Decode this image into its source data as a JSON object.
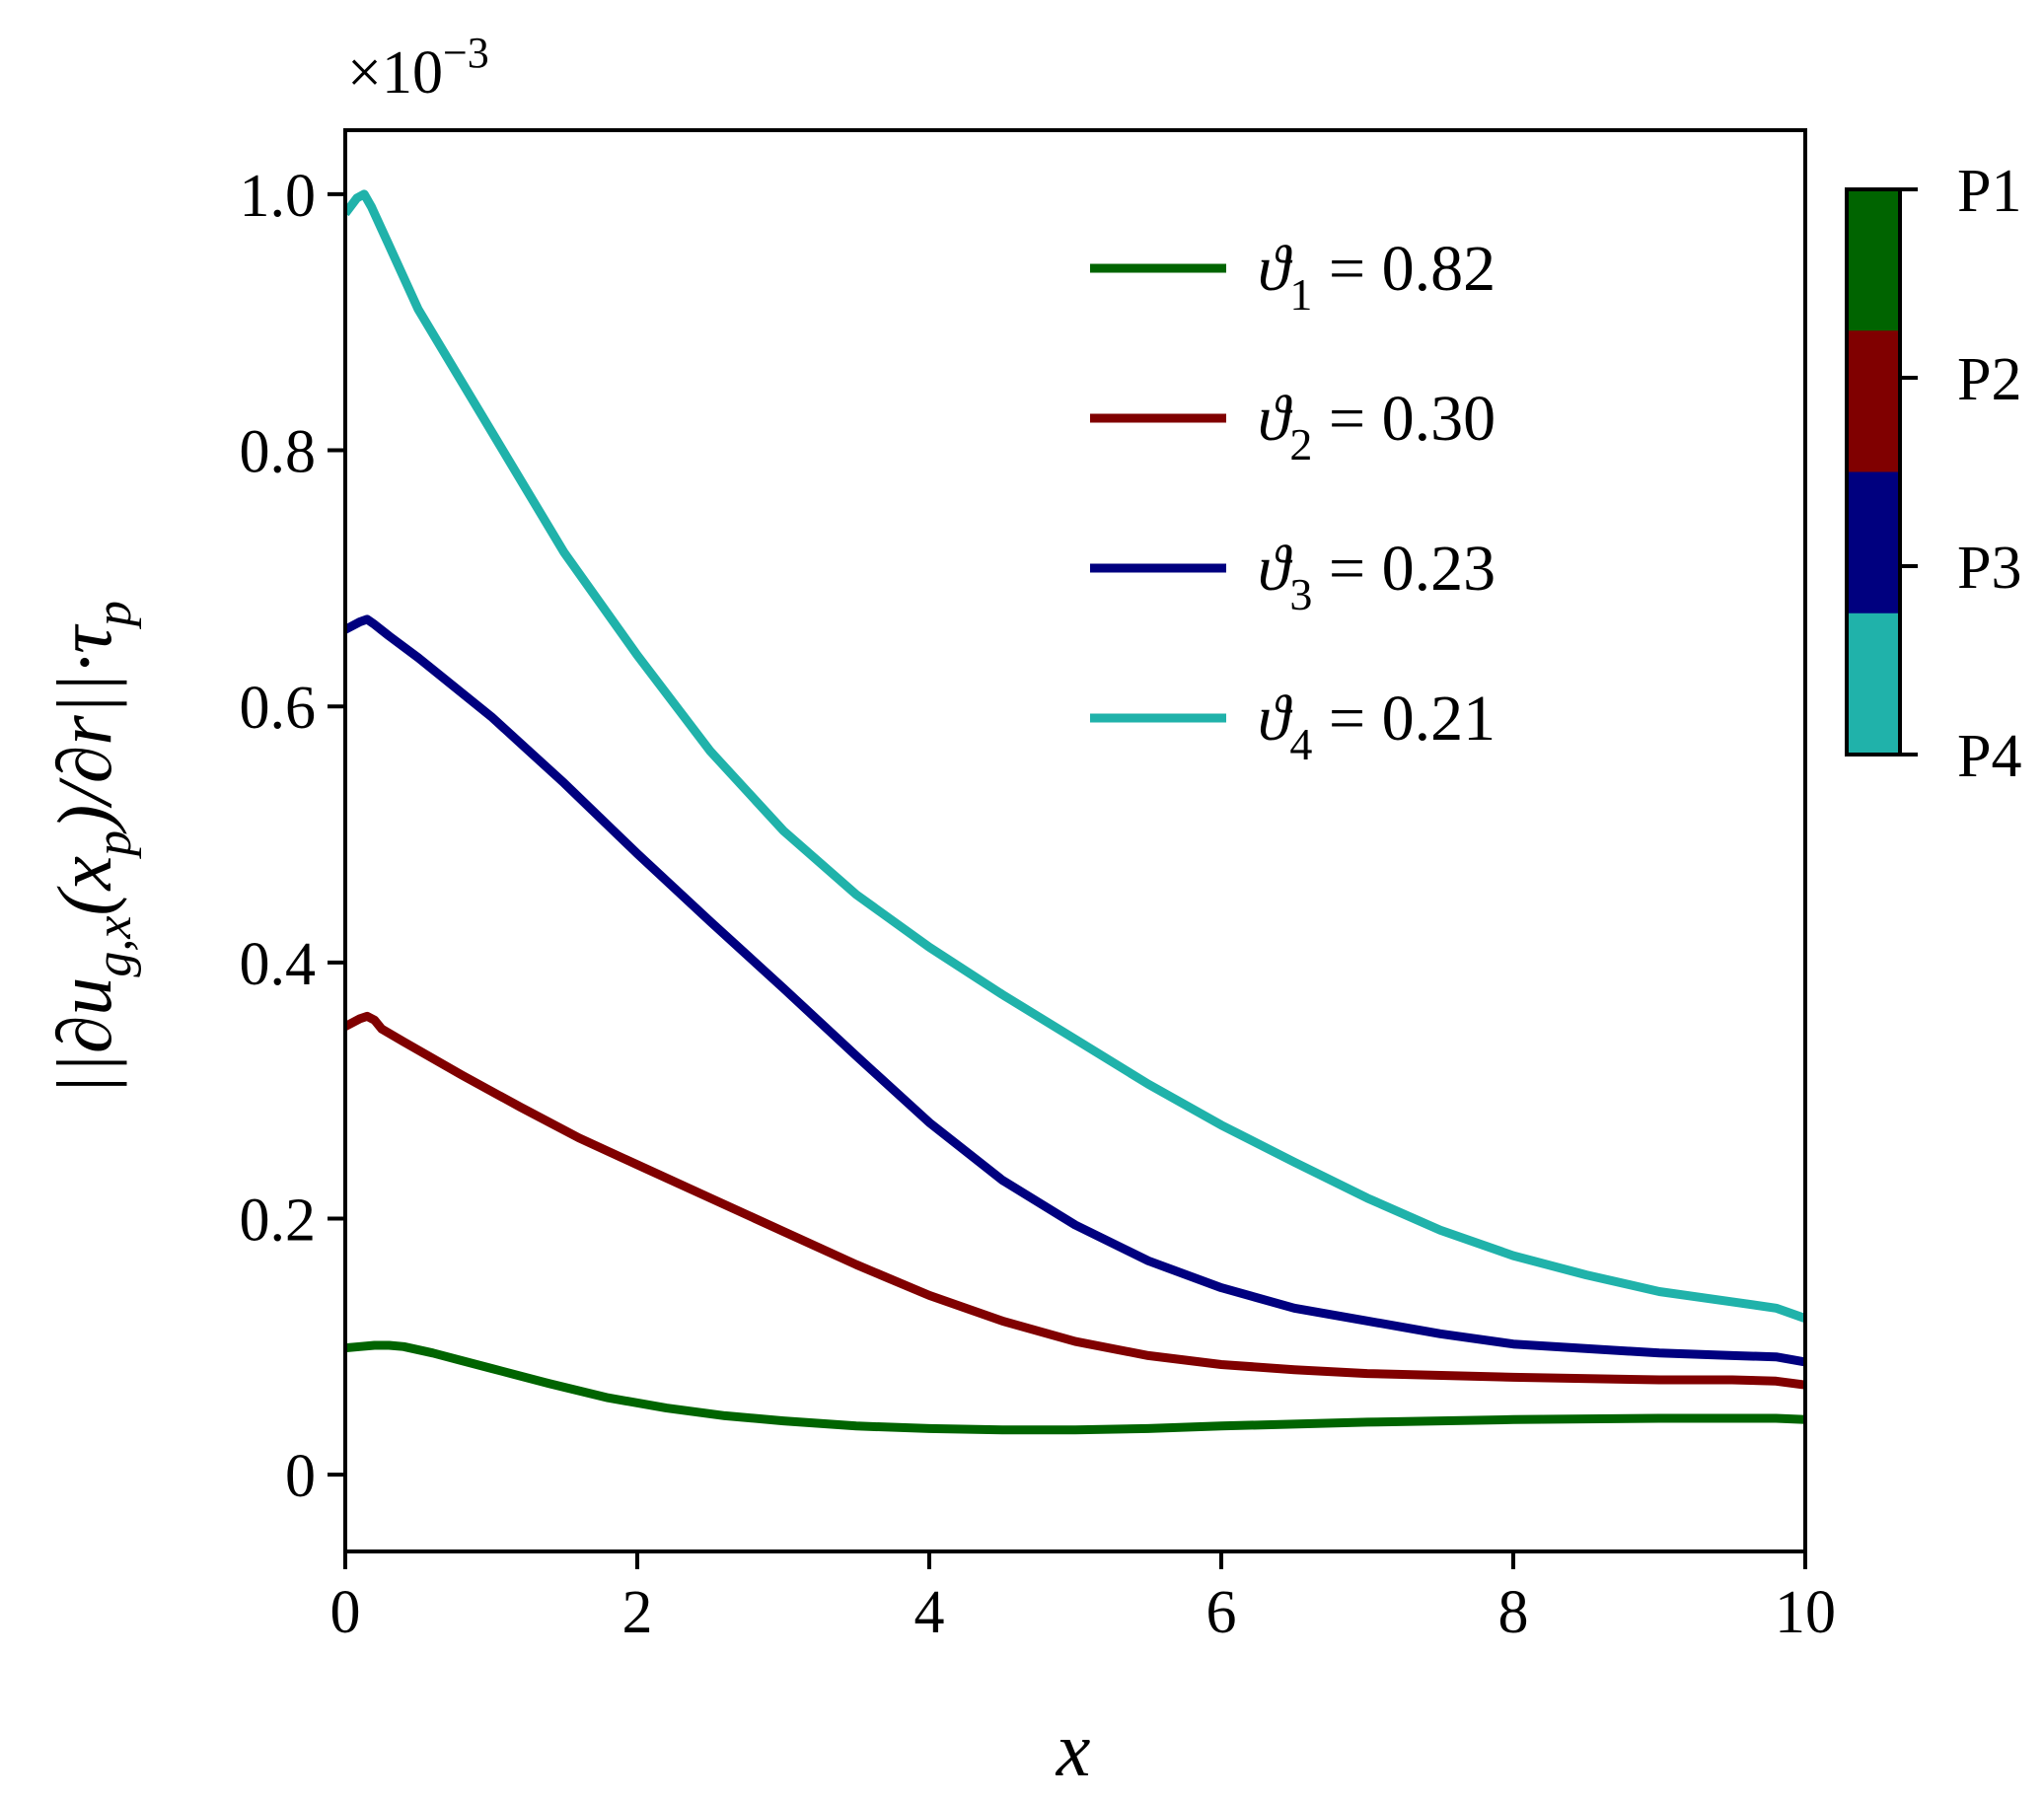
{
  "chart_data": {
    "type": "line",
    "xlabel": "x",
    "ylabel": "||∂u_g,x(x_p)/∂r||·τ_p",
    "y_multiplier": "×10−3",
    "xlim": [
      0,
      10
    ],
    "ylim": [
      -0.06,
      1.05
    ],
    "x_ticks": [
      0,
      2,
      4,
      6,
      8,
      10
    ],
    "y_ticks": [
      0,
      0.2,
      0.4,
      0.6,
      0.8,
      1.0
    ],
    "x_tick_labels": [
      "0",
      "2",
      "4",
      "6",
      "8",
      "10"
    ],
    "y_tick_labels": [
      "0",
      "0.2",
      "0.4",
      "0.6",
      "0.8",
      "1.0"
    ],
    "grid": false,
    "legend_position": "top-right",
    "series": [
      {
        "name": "ϑ1 = 0.82",
        "legend_symbol": "ϑ",
        "legend_sub": "1",
        "legend_value": " = 0.82",
        "color": "#006400",
        "x": [
          0,
          0.1,
          0.2,
          0.3,
          0.4,
          0.6,
          0.8,
          1.0,
          1.4,
          1.8,
          2.2,
          2.6,
          3.0,
          3.5,
          4.0,
          4.5,
          5.0,
          5.5,
          6.0,
          7.0,
          8.0,
          9.0,
          9.5,
          9.8,
          10.0
        ],
        "y": [
          0.099,
          0.1,
          0.101,
          0.101,
          0.1,
          0.095,
          0.089,
          0.083,
          0.071,
          0.06,
          0.052,
          0.046,
          0.042,
          0.038,
          0.036,
          0.035,
          0.035,
          0.036,
          0.038,
          0.041,
          0.043,
          0.044,
          0.044,
          0.044,
          0.043
        ]
      },
      {
        "name": "ϑ2 = 0.30",
        "legend_symbol": "ϑ",
        "legend_sub": "2",
        "legend_value": " = 0.30",
        "color": "#800000",
        "x": [
          0,
          0.1,
          0.15,
          0.2,
          0.25,
          0.4,
          0.8,
          1.2,
          1.6,
          2.0,
          2.5,
          3.0,
          3.5,
          4.0,
          4.5,
          5.0,
          5.5,
          6.0,
          6.5,
          7.0,
          8.0,
          9.0,
          9.5,
          9.8,
          10.0
        ],
        "y": [
          0.35,
          0.356,
          0.358,
          0.355,
          0.348,
          0.338,
          0.312,
          0.287,
          0.263,
          0.242,
          0.216,
          0.19,
          0.164,
          0.14,
          0.12,
          0.104,
          0.093,
          0.086,
          0.082,
          0.079,
          0.076,
          0.074,
          0.074,
          0.073,
          0.07
        ]
      },
      {
        "name": "ϑ3 = 0.23",
        "legend_symbol": "ϑ",
        "legend_sub": "3",
        "legend_value": " = 0.23",
        "color": "#00007f",
        "x": [
          0,
          0.1,
          0.15,
          0.2,
          0.3,
          0.5,
          1.0,
          1.5,
          2.0,
          2.5,
          3.0,
          3.5,
          4.0,
          4.5,
          5.0,
          5.5,
          6.0,
          6.5,
          7.0,
          7.5,
          8.0,
          9.0,
          9.5,
          9.8,
          10.0
        ],
        "y": [
          0.66,
          0.666,
          0.668,
          0.664,
          0.655,
          0.638,
          0.592,
          0.54,
          0.485,
          0.432,
          0.38,
          0.327,
          0.275,
          0.23,
          0.195,
          0.167,
          0.146,
          0.13,
          0.12,
          0.11,
          0.102,
          0.095,
          0.093,
          0.092,
          0.088
        ]
      },
      {
        "name": "ϑ4 = 0.21",
        "legend_symbol": "ϑ",
        "legend_sub": "4",
        "legend_value": " = 0.21",
        "color": "#20b2aa",
        "x": [
          0,
          0.08,
          0.13,
          0.18,
          0.3,
          0.5,
          1.0,
          1.5,
          2.0,
          2.5,
          3.0,
          3.5,
          4.0,
          4.5,
          5.0,
          5.5,
          6.0,
          6.5,
          7.0,
          7.5,
          8.0,
          8.5,
          9.0,
          9.5,
          9.8,
          10.0
        ],
        "y": [
          0.985,
          0.997,
          1.0,
          0.99,
          0.96,
          0.91,
          0.815,
          0.72,
          0.64,
          0.565,
          0.503,
          0.453,
          0.412,
          0.375,
          0.34,
          0.305,
          0.273,
          0.244,
          0.216,
          0.191,
          0.171,
          0.156,
          0.143,
          0.135,
          0.13,
          0.122
        ]
      }
    ],
    "colorbar": {
      "labels": [
        "P1",
        "P2",
        "P3",
        "P4"
      ],
      "colors": [
        "#006400",
        "#800000",
        "#00007f",
        "#20b2aa"
      ]
    }
  }
}
